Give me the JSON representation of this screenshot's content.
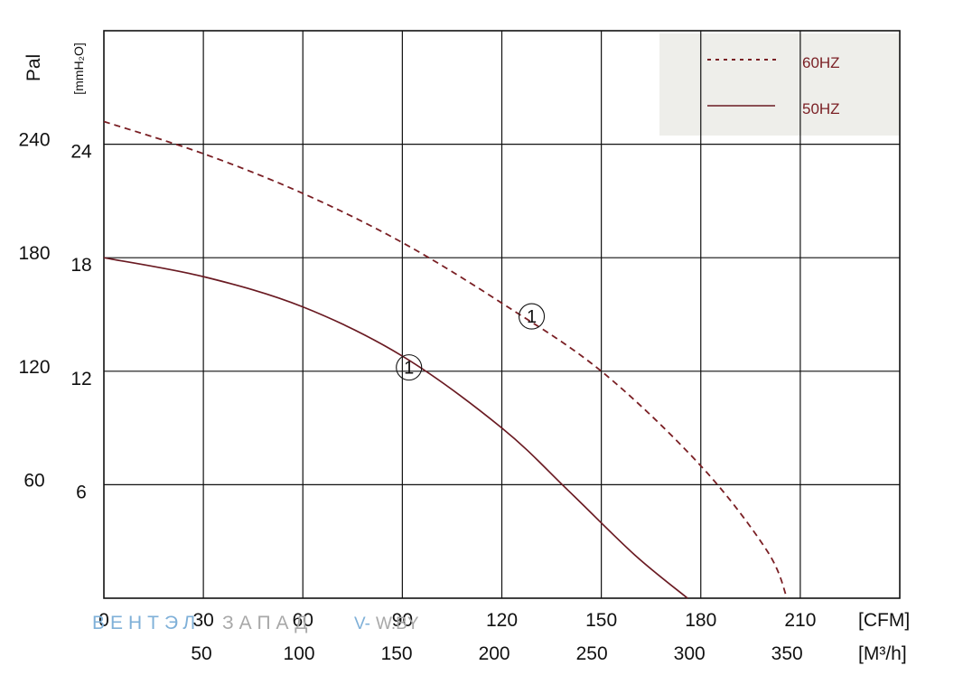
{
  "chart_data": {
    "type": "line",
    "title": "",
    "xlabel": "",
    "ylabel": "",
    "x_unit_primary": "[CFM]",
    "x_unit_secondary": "[M³/h]",
    "y_unit_outer": "Pal",
    "y_unit_inner": "[mmH₂O]",
    "xlim_cfm": [
      0,
      240
    ],
    "ylim_mmh2o": [
      0,
      30
    ],
    "x_ticks_cfm": [
      "0",
      "30",
      "60",
      "90",
      "120",
      "150",
      "180",
      "210"
    ],
    "x_ticks_m3h": [
      "50",
      "100",
      "150",
      "200",
      "250",
      "300",
      "350"
    ],
    "y_ticks_mmh2o": [
      "6",
      "12",
      "18",
      "24"
    ],
    "y_ticks_pa": [
      "60",
      "120",
      "180",
      "240"
    ],
    "grid": true,
    "legend": {
      "placement": "top-right",
      "background": "#eeeeea"
    },
    "series": [
      {
        "name": "60HZ",
        "style": "dashed",
        "color": "#7a1f24",
        "x": [
          0,
          30,
          60,
          90,
          120,
          150,
          180,
          200,
          206
        ],
        "y": [
          25.2,
          23.5,
          21.4,
          18.8,
          15.6,
          12.0,
          7.0,
          2.5,
          0
        ]
      },
      {
        "name": "50HZ",
        "style": "solid",
        "color": "#6a1a22",
        "x": [
          0,
          30,
          60,
          90,
          120,
          140,
          160,
          176
        ],
        "y": [
          18.0,
          17.0,
          15.4,
          12.8,
          9.0,
          5.7,
          2.3,
          0
        ]
      }
    ],
    "annotations": [
      {
        "text": "1",
        "x": 92,
        "y": 12.2
      },
      {
        "text": "1",
        "x": 129,
        "y": 14.9
      }
    ]
  },
  "watermark": {
    "part1": "ВЕНТЭЛ",
    "part2": "ЗАПАД",
    "part3": "V-",
    "part4": "W.BY",
    "color1": "#7fb0d8",
    "color2": "#a8a8a8"
  }
}
